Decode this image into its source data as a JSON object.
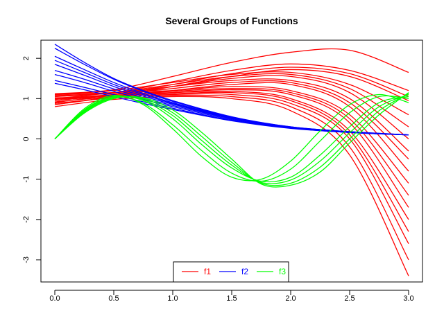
{
  "chart_data": {
    "type": "line",
    "title": "Several Groups of Functions",
    "xlabel": "",
    "ylabel": "",
    "xlim": [
      0.0,
      3.0
    ],
    "ylim": [
      -3.55,
      2.45
    ],
    "xticks": [
      "0.0",
      "0.5",
      "1.0",
      "1.5",
      "2.0",
      "2.5",
      "3.0"
    ],
    "xtick_values": [
      0.0,
      0.5,
      1.0,
      1.5,
      2.0,
      2.5,
      3.0
    ],
    "yticks": [
      "-3",
      "-2",
      "-1",
      "0",
      "1",
      "2"
    ],
    "ytick_values": [
      -3,
      -2,
      -1,
      0,
      1,
      2
    ],
    "grid": false,
    "legend_position": "bottom-center",
    "groups": [
      {
        "name": "f1",
        "color": "#ff0000",
        "series": [
          {
            "x": [
              0,
              0.5,
              1,
              1.5,
              2,
              2.5,
              3
            ],
            "y": [
              1.12,
              1.22,
              1.55,
              1.9,
              2.15,
              2.2,
              1.65
            ]
          },
          {
            "x": [
              0,
              0.5,
              1,
              1.5,
              2,
              2.5,
              3
            ],
            "y": [
              1.05,
              1.15,
              1.42,
              1.7,
              1.86,
              1.7,
              1.2
            ]
          },
          {
            "x": [
              0,
              0.5,
              1,
              1.5,
              2,
              2.5,
              3
            ],
            "y": [
              0.95,
              1.1,
              1.35,
              1.62,
              1.78,
              1.62,
              1.05
            ]
          },
          {
            "x": [
              0,
              0.5,
              1,
              1.5,
              2,
              2.5,
              3
            ],
            "y": [
              0.85,
              1.05,
              1.3,
              1.55,
              1.72,
              1.55,
              0.95
            ]
          },
          {
            "x": [
              0,
              0.5,
              1,
              1.5,
              2,
              2.5,
              3
            ],
            "y": [
              1.1,
              1.2,
              1.4,
              1.6,
              1.65,
              1.35,
              0.6
            ]
          },
          {
            "x": [
              0,
              0.5,
              1,
              1.5,
              2,
              2.5,
              3
            ],
            "y": [
              1.0,
              1.15,
              1.35,
              1.55,
              1.6,
              1.25,
              0.3
            ]
          },
          {
            "x": [
              0,
              0.5,
              1,
              1.5,
              2,
              2.5,
              3
            ],
            "y": [
              0.9,
              1.1,
              1.3,
              1.5,
              1.55,
              1.15,
              0.0
            ]
          },
          {
            "x": [
              0,
              0.5,
              1,
              1.5,
              2,
              2.5,
              3
            ],
            "y": [
              1.05,
              1.15,
              1.3,
              1.45,
              1.45,
              1.0,
              -0.3
            ]
          },
          {
            "x": [
              0,
              0.5,
              1,
              1.5,
              2,
              2.5,
              3
            ],
            "y": [
              0.95,
              1.1,
              1.25,
              1.4,
              1.4,
              0.9,
              -0.5
            ]
          },
          {
            "x": [
              0,
              0.5,
              1,
              1.5,
              2,
              2.5,
              3
            ],
            "y": [
              0.85,
              1.05,
              1.2,
              1.35,
              1.35,
              0.8,
              -0.8
            ]
          },
          {
            "x": [
              0,
              0.5,
              1,
              1.5,
              2,
              2.5,
              3
            ],
            "y": [
              1.1,
              1.15,
              1.2,
              1.3,
              1.2,
              0.6,
              -1.1
            ]
          },
          {
            "x": [
              0,
              0.5,
              1,
              1.5,
              2,
              2.5,
              3
            ],
            "y": [
              1.0,
              1.1,
              1.18,
              1.25,
              1.15,
              0.5,
              -1.4
            ]
          },
          {
            "x": [
              0,
              0.5,
              1,
              1.5,
              2,
              2.5,
              3
            ],
            "y": [
              0.92,
              1.05,
              1.15,
              1.22,
              1.1,
              0.4,
              -1.7
            ]
          },
          {
            "x": [
              0,
              0.5,
              1,
              1.5,
              2,
              2.5,
              3
            ],
            "y": [
              1.08,
              1.12,
              1.15,
              1.18,
              1.0,
              0.2,
              -2.0
            ]
          },
          {
            "x": [
              0,
              0.5,
              1,
              1.5,
              2,
              2.5,
              3
            ],
            "y": [
              0.98,
              1.08,
              1.12,
              1.15,
              0.95,
              0.1,
              -2.3
            ]
          },
          {
            "x": [
              0,
              0.5,
              1,
              1.5,
              2,
              2.5,
              3
            ],
            "y": [
              0.88,
              1.02,
              1.1,
              1.1,
              0.88,
              0.0,
              -2.6
            ]
          },
          {
            "x": [
              0,
              0.5,
              1,
              1.5,
              2,
              2.5,
              3
            ],
            "y": [
              1.02,
              1.05,
              1.08,
              1.05,
              0.8,
              -0.2,
              -3.0
            ]
          },
          {
            "x": [
              0,
              0.5,
              1,
              1.5,
              2,
              2.5,
              3
            ],
            "y": [
              0.8,
              0.98,
              1.05,
              1.0,
              0.7,
              -0.4,
              -3.4
            ]
          }
        ]
      },
      {
        "name": "f2",
        "color": "#0000ff",
        "series": [
          {
            "x": [
              0,
              0.25,
              0.5,
              0.75,
              1,
              1.5,
              2,
              2.5,
              3
            ],
            "y": [
              2.35,
              1.9,
              1.5,
              1.2,
              0.95,
              0.55,
              0.3,
              0.18,
              0.1
            ]
          },
          {
            "x": [
              0,
              0.25,
              0.5,
              0.75,
              1,
              1.5,
              2,
              2.5,
              3
            ],
            "y": [
              2.25,
              1.85,
              1.48,
              1.18,
              0.93,
              0.54,
              0.3,
              0.18,
              0.1
            ]
          },
          {
            "x": [
              0,
              0.25,
              0.5,
              0.75,
              1,
              1.5,
              2,
              2.5,
              3
            ],
            "y": [
              2.05,
              1.72,
              1.4,
              1.13,
              0.9,
              0.53,
              0.29,
              0.17,
              0.1
            ]
          },
          {
            "x": [
              0,
              0.25,
              0.5,
              0.75,
              1,
              1.5,
              2,
              2.5,
              3
            ],
            "y": [
              1.95,
              1.65,
              1.35,
              1.1,
              0.88,
              0.52,
              0.29,
              0.17,
              0.1
            ]
          },
          {
            "x": [
              0,
              0.25,
              0.5,
              0.75,
              1,
              1.5,
              2,
              2.5,
              3
            ],
            "y": [
              1.85,
              1.58,
              1.3,
              1.06,
              0.86,
              0.51,
              0.28,
              0.17,
              0.1
            ]
          },
          {
            "x": [
              0,
              0.25,
              0.5,
              0.75,
              1,
              1.5,
              2,
              2.5,
              3
            ],
            "y": [
              1.7,
              1.48,
              1.24,
              1.02,
              0.83,
              0.5,
              0.28,
              0.16,
              0.1
            ]
          },
          {
            "x": [
              0,
              0.25,
              0.5,
              0.75,
              1,
              1.5,
              2,
              2.5,
              3
            ],
            "y": [
              1.6,
              1.4,
              1.18,
              0.98,
              0.8,
              0.48,
              0.27,
              0.16,
              0.1
            ]
          },
          {
            "x": [
              0,
              0.25,
              0.5,
              0.75,
              1,
              1.5,
              2,
              2.5,
              3
            ],
            "y": [
              1.45,
              1.28,
              1.1,
              0.92,
              0.76,
              0.46,
              0.27,
              0.16,
              0.1
            ]
          },
          {
            "x": [
              0,
              0.25,
              0.5,
              0.75,
              1,
              1.5,
              2,
              2.5,
              3
            ],
            "y": [
              1.38,
              1.22,
              1.05,
              0.88,
              0.73,
              0.45,
              0.26,
              0.16,
              0.1
            ]
          }
        ]
      },
      {
        "name": "f3",
        "color": "#00ff00",
        "series": [
          {
            "x": [
              0,
              0.25,
              0.5,
              0.75,
              1,
              1.25,
              1.5,
              1.75,
              2,
              2.25,
              2.5,
              2.75,
              3
            ],
            "y": [
              0.0,
              0.75,
              1.08,
              0.85,
              0.25,
              -0.45,
              -0.95,
              -1.0,
              -0.55,
              0.2,
              0.85,
              1.1,
              0.9
            ]
          },
          {
            "x": [
              0,
              0.25,
              0.5,
              0.75,
              1,
              1.25,
              1.5,
              1.75,
              2,
              2.25,
              2.5,
              2.75,
              3
            ],
            "y": [
              0.0,
              0.72,
              1.05,
              0.88,
              0.35,
              -0.3,
              -0.85,
              -1.05,
              -0.75,
              -0.05,
              0.65,
              1.05,
              1.0
            ]
          },
          {
            "x": [
              0,
              0.25,
              0.5,
              0.75,
              1,
              1.25,
              1.5,
              1.75,
              2,
              2.25,
              2.5,
              2.75,
              3
            ],
            "y": [
              0.0,
              0.7,
              1.05,
              0.95,
              0.5,
              -0.15,
              -0.72,
              -1.05,
              -0.95,
              -0.4,
              0.3,
              0.9,
              1.05
            ]
          },
          {
            "x": [
              0,
              0.25,
              0.5,
              0.75,
              1,
              1.25,
              1.5,
              1.75,
              2,
              2.25,
              2.5,
              2.75,
              3
            ],
            "y": [
              0.0,
              0.68,
              1.03,
              0.97,
              0.58,
              -0.05,
              -0.65,
              -1.08,
              -1.02,
              -0.55,
              0.15,
              0.8,
              1.1
            ]
          },
          {
            "x": [
              0,
              0.25,
              0.5,
              0.75,
              1,
              1.25,
              1.5,
              1.75,
              2,
              2.25,
              2.5,
              2.75,
              3
            ],
            "y": [
              0.0,
              0.66,
              1.02,
              1.0,
              0.65,
              0.05,
              -0.58,
              -1.1,
              -1.1,
              -0.7,
              0.0,
              0.7,
              1.12
            ]
          },
          {
            "x": [
              0,
              0.25,
              0.5,
              0.75,
              1,
              1.25,
              1.5,
              1.75,
              2,
              2.25,
              2.5,
              2.75,
              3
            ],
            "y": [
              0.0,
              0.64,
              1.0,
              1.02,
              0.72,
              0.15,
              -0.5,
              -1.12,
              -1.15,
              -0.82,
              -0.1,
              0.6,
              1.15
            ]
          }
        ]
      }
    ]
  }
}
